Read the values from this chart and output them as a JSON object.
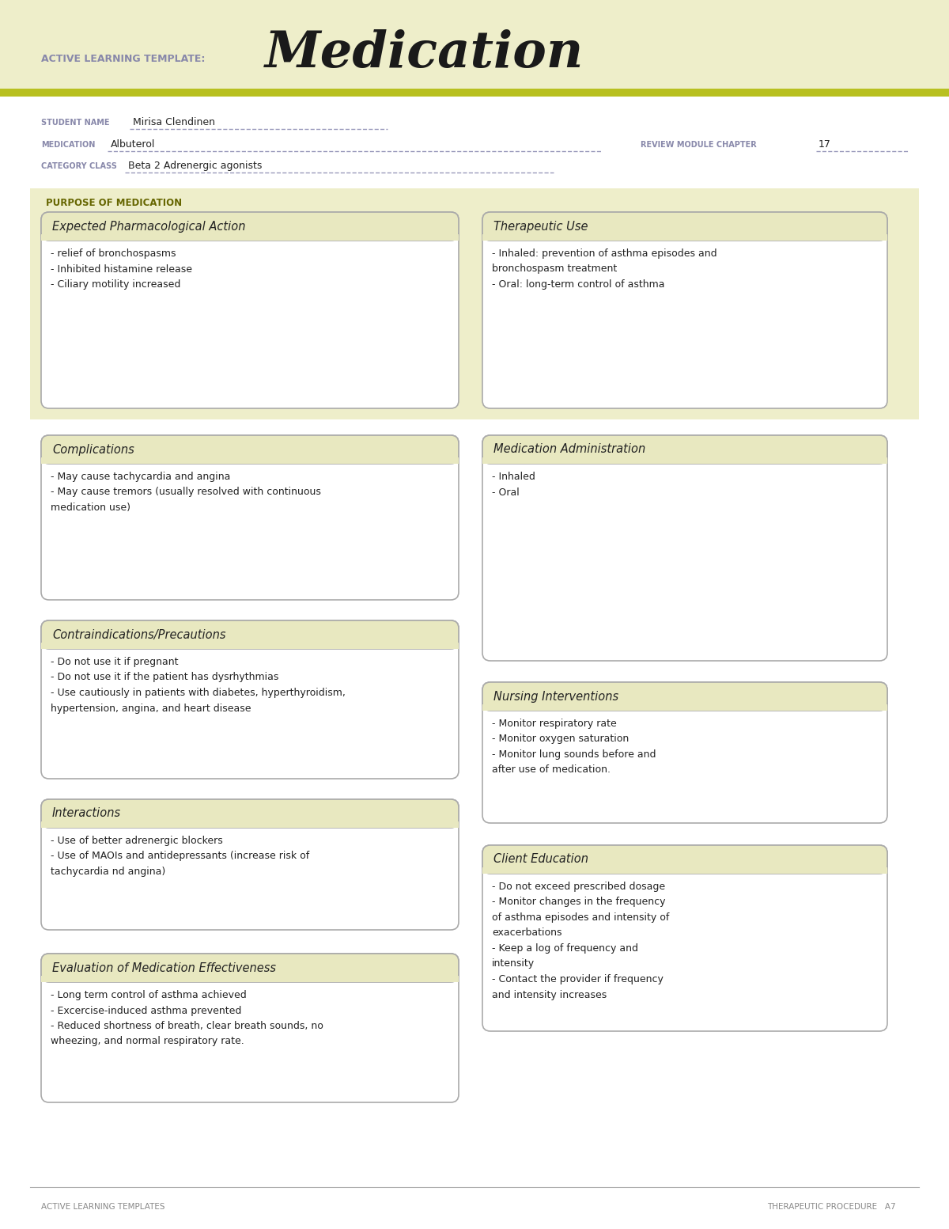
{
  "page_bg": "#ffffff",
  "header_bg": "#eeeeca",
  "box_header_bg": "#e8e8c0",
  "box_bg": "#ffffff",
  "box_border": "#aaaaaa",
  "label_color": "#8888aa",
  "text_dark": "#222222",
  "title_color": "#1a1a1a",
  "olive_line": "#b8c020",
  "purpose_bg": "#eeeeca",
  "footer_line": "#aaaaaa",
  "footer_text": "#888888",
  "template_label": "ACTIVE LEARNING TEMPLATE:",
  "title_text": "Medication",
  "student_name": "Mirisa Clendinen",
  "medication": "Albuterol",
  "review_module": "17",
  "category_class": "Beta 2 Adrenergic agonists",
  "purpose_label": "PURPOSE OF MEDICATION",
  "sections": {
    "expected_pharm": {
      "title": "Expected Pharmacological Action",
      "content": "- relief of bronchospasms\n- Inhibited histamine release\n- Ciliary motility increased"
    },
    "therapeutic_use": {
      "title": "Therapeutic Use",
      "content": "- Inhaled: prevention of asthma episodes and\nbronchospasm treatment\n- Oral: long-term control of asthma"
    },
    "complications": {
      "title": "Complications",
      "content": "- May cause tachycardia and angina\n- May cause tremors (usually resolved with continuous\nmedication use)"
    },
    "med_admin": {
      "title": "Medication Administration",
      "content": "- Inhaled\n- Oral"
    },
    "contraindications": {
      "title": "Contraindications/Precautions",
      "content": "- Do not use it if pregnant\n- Do not use it if the patient has dysrhythmias\n- Use cautiously in patients with diabetes, hyperthyroidism,\nhypertension, angina, and heart disease"
    },
    "nursing": {
      "title": "Nursing Interventions",
      "content": "- Monitor respiratory rate\n- Monitor oxygen saturation\n- Monitor lung sounds before and\nafter use of medication."
    },
    "interactions": {
      "title": "Interactions",
      "content": "- Use of better adrenergic blockers\n- Use of MAOIs and antidepressants (increase risk of\ntachycardia nd angina)"
    },
    "client_ed": {
      "title": "Client Education",
      "content": "- Do not exceed prescribed dosage\n- Monitor changes in the frequency\nof asthma episodes and intensity of\nexacerbations\n- Keep a log of frequency and\nintensity\n- Contact the provider if frequency\nand intensity increases"
    },
    "eval_effectiveness": {
      "title": "Evaluation of Medication Effectiveness",
      "content": "- Long term control of asthma achieved\n- Excercise-induced asthma prevented\n- Reduced shortness of breath, clear breath sounds, no\nwheezing, and normal respiratory rate."
    }
  },
  "footer_left": "ACTIVE LEARNING TEMPLATES",
  "footer_right": "THERAPEUTIC PROCEDURE   A7"
}
